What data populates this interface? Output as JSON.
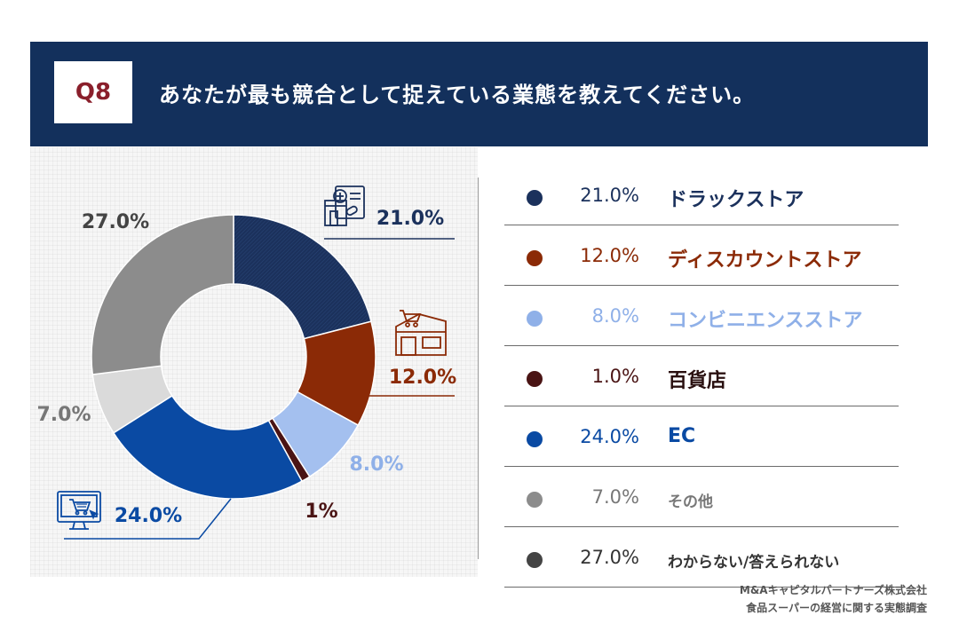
{
  "header": {
    "badge": "Q8",
    "title": "あなたが最も競合として捉えている業態を教えてください。"
  },
  "chart_data": {
    "type": "pie",
    "subtype": "donut",
    "categories": [
      "ドラックストア",
      "ディスカウントストア",
      "コンビニエンスストア",
      "百貨店",
      "EC",
      "その他",
      "わからない/答えられない"
    ],
    "values": [
      21.0,
      12.0,
      8.0,
      1.0,
      24.0,
      7.0,
      27.0
    ],
    "slice_labels": [
      "21.0%",
      "12.0%",
      "8.0%",
      "1%",
      "24.0%",
      "7.0%",
      "27.0%"
    ],
    "legend_values": [
      "21.0%",
      "12.0%",
      "8.0%",
      "1.0%",
      "24.0%",
      "7.0%",
      "27.0%"
    ],
    "colors": [
      "#1b315c",
      "#8b2a06",
      "#a4c0ef",
      "#4a1414",
      "#0a4aa3",
      "#dadada",
      "#8c8c8c"
    ],
    "label_colors": [
      "#1b315c",
      "#8b2a06",
      "#8fb0e8",
      "#4a1414",
      "#0a4aa3",
      "#777777",
      "#444444"
    ],
    "dot_colors": [
      "#1b315c",
      "#8b2a06",
      "#8fb0e8",
      "#4a1414",
      "#0a4aa3",
      "#8c8c8c",
      "#444444"
    ],
    "icons": [
      "drugstore-icon",
      "discount-store-icon",
      "",
      "",
      "ecommerce-icon",
      "",
      ""
    ]
  },
  "source": {
    "line1": "M&Aキャピタルパートナーズ株式会社",
    "line2": "食品スーパーの経営に関する実態調査"
  }
}
